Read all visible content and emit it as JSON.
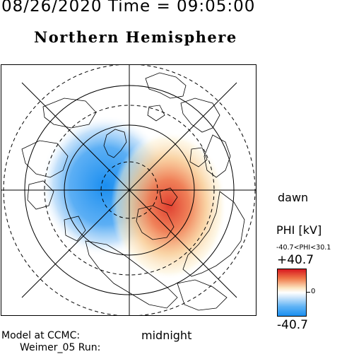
{
  "header": {
    "datetime": "08/26/2020 Time = 09:05:00",
    "hemisphere": "Northern Hemisphere"
  },
  "map_labels": {
    "dawn": "dawn",
    "midnight": "midnight"
  },
  "colorbar": {
    "title": "PHI [kV]",
    "range_text": "-40.7<PHI<30.1",
    "max_label": "+40.7",
    "zero_label": "0",
    "min_label": "-40.7",
    "max_value": 40.7,
    "min_value": -40.7,
    "colors": {
      "max": "#d7181f",
      "mid": "#ffffff",
      "min": "#1a8ef0"
    }
  },
  "footer": {
    "model_at": "Model at CCMC:",
    "run": "Weimer_05 Run:"
  },
  "potential_cells": [
    {
      "sign": "negative",
      "peak_kv": -40.7,
      "side": "dusk"
    },
    {
      "sign": "positive",
      "peak_kv": 30.1,
      "side": "dawn"
    }
  ]
}
